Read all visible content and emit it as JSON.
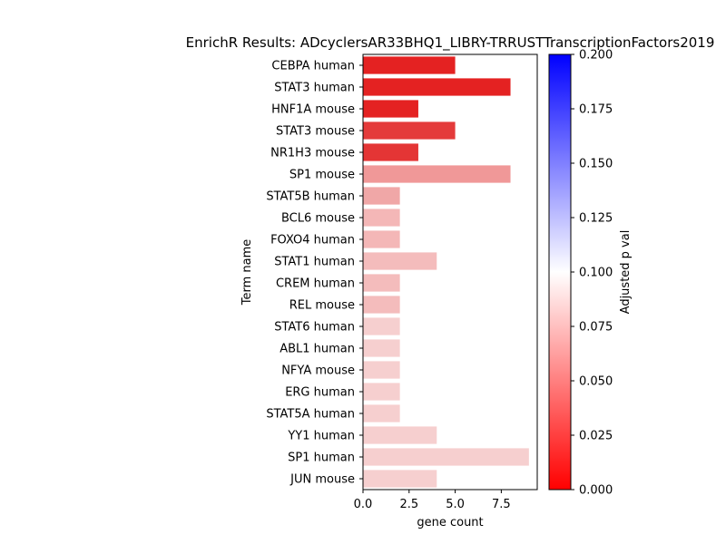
{
  "chart_data": {
    "type": "bar",
    "orientation": "horizontal",
    "title": "EnrichR Results: ADcyclersAR33BHQ1_LIBRY-TRRUSTTranscriptionFactors2019",
    "xlabel": "gene count",
    "ylabel": "Term name",
    "xlim": [
      0,
      9.45
    ],
    "xticks": [
      0.0,
      2.5,
      5.0,
      7.5
    ],
    "xtick_labels": [
      "0.0",
      "2.5",
      "5.0",
      "7.5"
    ],
    "categories": [
      "CEBPA human",
      "STAT3 human",
      "HNF1A mouse",
      "STAT3 mouse",
      "NR1H3 mouse",
      "SP1 mouse",
      "STAT5B human",
      "BCL6 mouse",
      "FOXO4 human",
      "STAT1 human",
      "CREM human",
      "REL mouse",
      "STAT6 human",
      "ABL1 human",
      "NFYA mouse",
      "ERG human",
      "STAT5A human",
      "YY1 human",
      "SP1 human",
      "JUN mouse"
    ],
    "values": [
      5,
      8,
      3,
      5,
      3,
      8,
      2,
      2,
      2,
      4,
      2,
      2,
      2,
      2,
      2,
      2,
      2,
      4,
      9,
      4
    ],
    "colors": [
      "#e42222",
      "#e42222",
      "#e42222",
      "#e43a3a",
      "#e43535",
      "#f09898",
      "#f0a7a7",
      "#f4b7b7",
      "#f4b7b7",
      "#f4bcbc",
      "#f4bcbc",
      "#f4bcbc",
      "#f6cfcf",
      "#f6cfcf",
      "#f6cfcf",
      "#f6cfcf",
      "#f6cfcf",
      "#f6cfcf",
      "#f6cfcf",
      "#f6cfcf"
    ],
    "colorbar": {
      "label": "Adjusted p val",
      "range": [
        0.0,
        0.2
      ],
      "ticks": [
        0.0,
        0.025,
        0.05,
        0.075,
        0.1,
        0.125,
        0.15,
        0.175,
        0.2
      ],
      "tick_labels": [
        "0.000",
        "0.025",
        "0.050",
        "0.075",
        "0.100",
        "0.125",
        "0.150",
        "0.175",
        "0.200"
      ],
      "colors": [
        "#ff0000",
        "#ffffff",
        "#0000ff"
      ]
    },
    "grid": false
  }
}
